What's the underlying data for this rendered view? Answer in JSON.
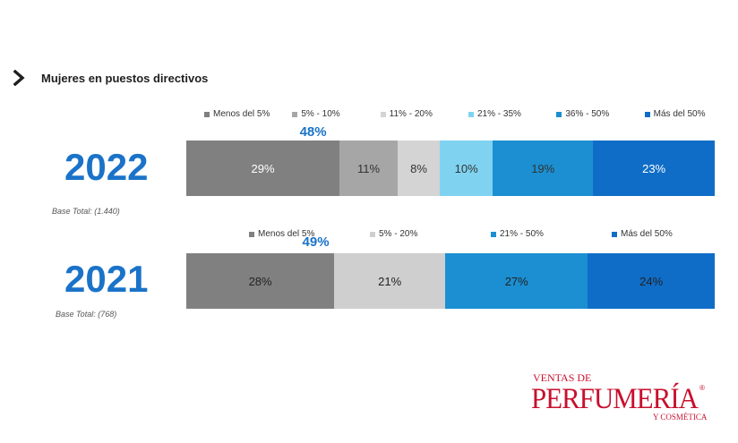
{
  "heading": "Mujeres en puestos directivos",
  "chart_data": [
    {
      "type": "bar",
      "orientation": "horizontal-stacked-100",
      "year": "2022",
      "base": "Base Total: (1.440)",
      "categories": [
        "Menos del 5%",
        "5% - 10%",
        "11% - 20%",
        "21% - 35%",
        "36% - 50%",
        "Más del 50%"
      ],
      "values": [
        29,
        11,
        8,
        10,
        19,
        23
      ],
      "labels": [
        "29%",
        "11%",
        "8%",
        "10%",
        "19%",
        "23%"
      ],
      "colors": [
        "#808080",
        "#a6a6a6",
        "#d4d4d4",
        "#7fd3f0",
        "#1b8fd1",
        "#0f6dc7"
      ],
      "label_colors": [
        "#ffffff",
        "#333333",
        "#333333",
        "#333333",
        "#333333",
        "#ffffff"
      ],
      "bracket_label": "48%",
      "bracket_span": 3
    },
    {
      "type": "bar",
      "orientation": "horizontal-stacked-100",
      "year": "2021",
      "base": "Base Total: (768)",
      "categories": [
        "Menos del 5%",
        "5% - 20%",
        "21% - 50%",
        "Más del 50%"
      ],
      "values": [
        28,
        21,
        27,
        24
      ],
      "labels": [
        "28%",
        "21%",
        "27%",
        "24%"
      ],
      "colors": [
        "#808080",
        "#cfcfcf",
        "#1b8fd1",
        "#0f6dc7"
      ],
      "label_colors": [
        "#222222",
        "#222222",
        "#222222",
        "#222222"
      ],
      "bracket_label": "49%",
      "bracket_span": 2
    }
  ],
  "logo": {
    "line1": "VENTAS DE",
    "line2": "PERFUMERÍA",
    "line3": "Y COSMÉTICA",
    "mark": "®",
    "color": "#c8102e"
  }
}
